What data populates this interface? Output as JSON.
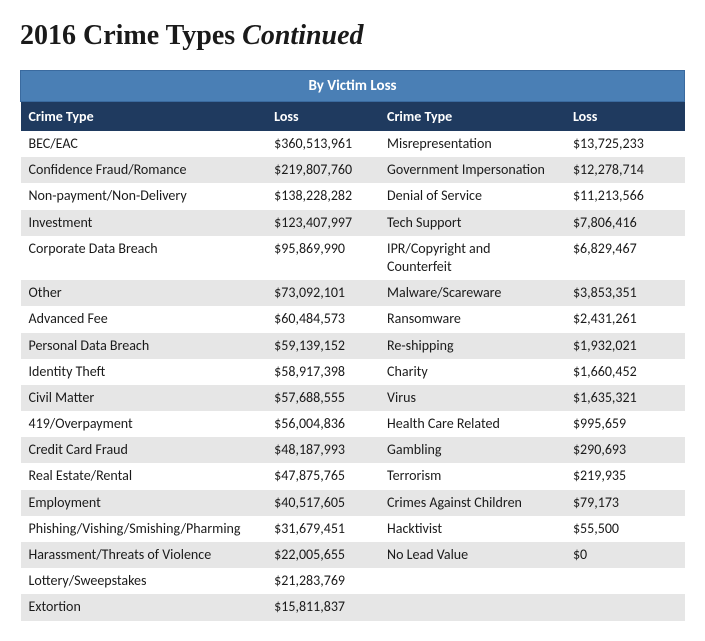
{
  "title_prefix": "2016 Crime Types ",
  "title_suffix": "Continued",
  "section_header": "By Victim Loss",
  "columns": {
    "crime_type": "Crime Type",
    "loss": "Loss"
  },
  "rows": [
    {
      "c1": "BEC/EAC",
      "l1": "$360,513,961",
      "c2": "Misrepresentation",
      "l2": "$13,725,233"
    },
    {
      "c1": "Confidence Fraud/Romance",
      "l1": "$219,807,760",
      "c2": "Government Impersonation",
      "l2": "$12,278,714"
    },
    {
      "c1": "Non-payment/Non-Delivery",
      "l1": "$138,228,282",
      "c2": "Denial of Service",
      "l2": "$11,213,566"
    },
    {
      "c1": "Investment",
      "l1": "$123,407,997",
      "c2": "Tech Support",
      "l2": "$7,806,416"
    },
    {
      "c1": "Corporate Data Breach",
      "l1": "$95,869,990",
      "c2": "IPR/Copyright and Counterfeit",
      "l2": "$6,829,467"
    },
    {
      "c1": "Other",
      "l1": "$73,092,101",
      "c2": "Malware/Scareware",
      "l2": "$3,853,351"
    },
    {
      "c1": "Advanced Fee",
      "l1": "$60,484,573",
      "c2": "Ransomware",
      "l2": "$2,431,261"
    },
    {
      "c1": "Personal Data Breach",
      "l1": "$59,139,152",
      "c2": "Re-shipping",
      "l2": "$1,932,021"
    },
    {
      "c1": "Identity Theft",
      "l1": "$58,917,398",
      "c2": "Charity",
      "l2": "$1,660,452"
    },
    {
      "c1": "Civil Matter",
      "l1": "$57,688,555",
      "c2": "Virus",
      "l2": "$1,635,321"
    },
    {
      "c1": "419/Overpayment",
      "l1": "$56,004,836",
      "c2": "Health Care Related",
      "l2": "$995,659"
    },
    {
      "c1": "Credit Card Fraud",
      "l1": "$48,187,993",
      "c2": "Gambling",
      "l2": "$290,693"
    },
    {
      "c1": "Real Estate/Rental",
      "l1": "$47,875,765",
      "c2": "Terrorism",
      "l2": "$219,935"
    },
    {
      "c1": "Employment",
      "l1": "$40,517,605",
      "c2": "Crimes Against Children",
      "l2": "$79,173"
    },
    {
      "c1": "Phishing/Vishing/Smishing/Pharming",
      "l1": "$31,679,451",
      "c2": "Hacktivist",
      "l2": "$55,500"
    },
    {
      "c1": "Harassment/Threats of Violence",
      "l1": "$22,005,655",
      "c2": "No Lead Value",
      "l2": "$0"
    },
    {
      "c1": "Lottery/Sweepstakes",
      "l1": "$21,283,769",
      "c2": "",
      "l2": ""
    },
    {
      "c1": "Extortion",
      "l1": "$15,811,837",
      "c2": "",
      "l2": ""
    }
  ],
  "colors": {
    "section_header_bg": "#4a7fb5",
    "col_header_bg": "#1f3a5f",
    "row_alt_bg": "#e6e6e6",
    "text": "#1a1a1a"
  }
}
